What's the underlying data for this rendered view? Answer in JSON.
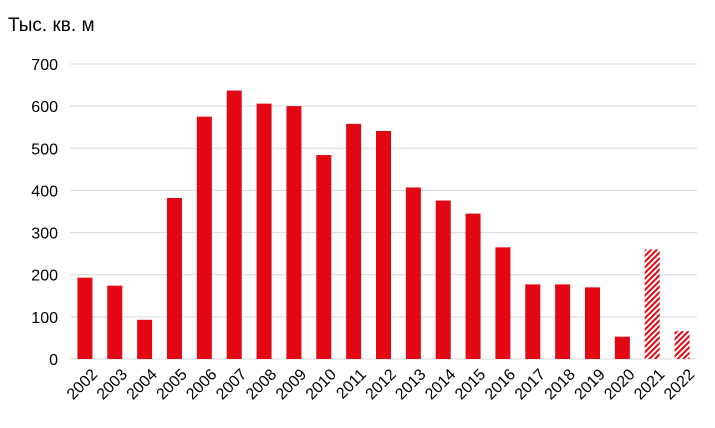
{
  "chart_data": {
    "type": "bar",
    "ylabel": "Тыс. кв. м",
    "xlabel": "",
    "ylim": [
      0,
      700
    ],
    "yticks": [
      0,
      100,
      200,
      300,
      400,
      500,
      600,
      700
    ],
    "grid": true,
    "legend": "none",
    "categories": [
      "2002",
      "2003",
      "2004",
      "2005",
      "2006",
      "2007",
      "2008",
      "2009",
      "2010",
      "2011",
      "2012",
      "2013",
      "2014",
      "2015",
      "2016",
      "2017",
      "2018",
      "2019",
      "2020",
      "2021",
      "2022"
    ],
    "values": [
      193,
      174,
      93,
      382,
      575,
      637,
      606,
      600,
      484,
      558,
      541,
      407,
      376,
      345,
      265,
      177,
      177,
      170,
      53,
      260,
      66
    ],
    "hatched": [
      false,
      false,
      false,
      false,
      false,
      false,
      false,
      false,
      false,
      false,
      false,
      false,
      false,
      false,
      false,
      false,
      false,
      false,
      false,
      true,
      true
    ],
    "colors": {
      "bar": "#e30613",
      "grid": "#d9d9d9",
      "text": "#000000"
    }
  }
}
